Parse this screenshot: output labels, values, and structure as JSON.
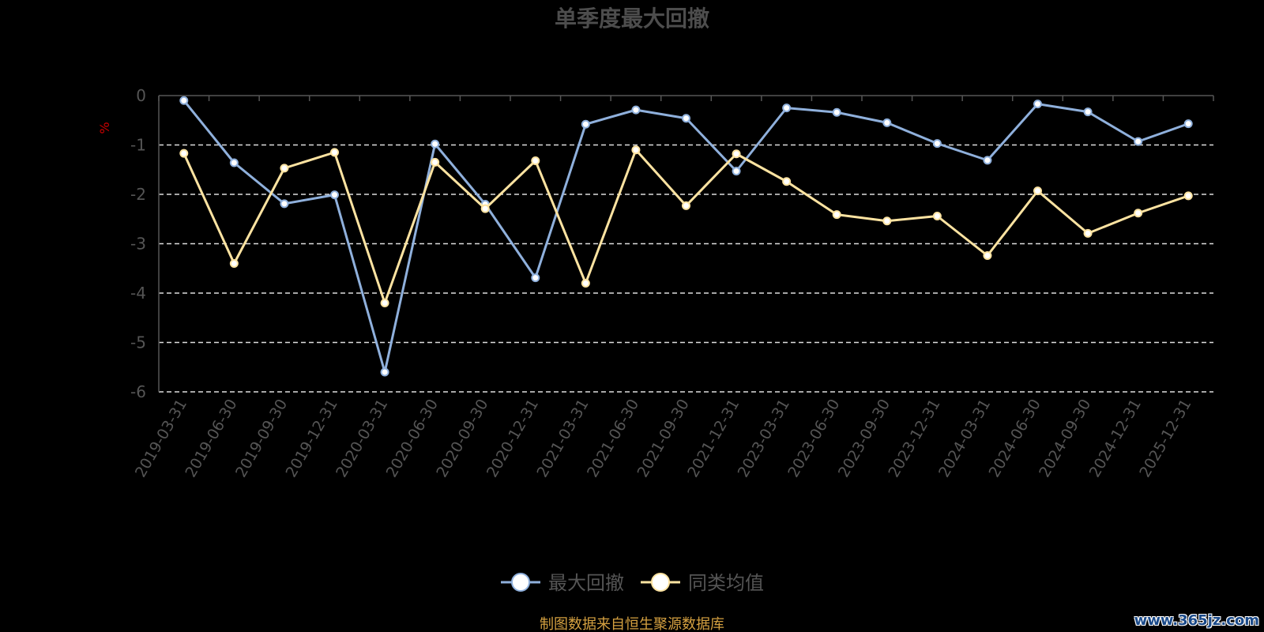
{
  "chart_data": {
    "type": "line",
    "title": "单季度最大回撤",
    "ylabel": "%",
    "ylim": [
      -6,
      0
    ],
    "yticks": [
      0,
      -1,
      -2,
      -3,
      -4,
      -5,
      -6
    ],
    "grid": true,
    "legend_position": "bottom-center",
    "categories": [
      "2019-03-31",
      "2019-06-30",
      "2019-09-30",
      "2019-12-31",
      "2020-03-31",
      "2020-06-30",
      "2020-09-30",
      "2020-12-31",
      "2021-03-31",
      "2021-06-30",
      "2021-09-30",
      "2021-12-31",
      "2023-03-31",
      "2023-06-30",
      "2023-09-30",
      "2023-12-31",
      "2024-03-31",
      "2024-06-30",
      "2024-09-30",
      "2024-12-31",
      "2025-12-31"
    ],
    "series": [
      {
        "name": "最大回撤",
        "color": "#8fb0dc",
        "values": [
          -0.1,
          -1.36,
          -2.19,
          -2.01,
          -5.6,
          -0.98,
          -2.2,
          -3.69,
          -0.58,
          -0.29,
          -0.46,
          -1.53,
          -0.25,
          -0.34,
          -0.55,
          -0.97,
          -1.31,
          -0.17,
          -0.33,
          -0.93,
          -0.57
        ]
      },
      {
        "name": "同类均值",
        "color": "#fde3a1",
        "values": [
          -1.17,
          -3.4,
          -1.47,
          -1.15,
          -4.2,
          -1.35,
          -2.29,
          -1.32,
          -3.8,
          -1.1,
          -2.23,
          -1.18,
          -1.74,
          -2.41,
          -2.54,
          -2.44,
          -3.24,
          -1.93,
          -2.79,
          -2.38,
          -2.03
        ]
      }
    ]
  },
  "colors": {
    "title": "#4d4d4d",
    "axis_text": "#555555",
    "ylabel": "#cc0000",
    "source": "#d4a040",
    "grid": "#dddddd"
  },
  "source_text": "制图数据来自恒生聚源数据库",
  "watermark_text": "www.365jz.com"
}
